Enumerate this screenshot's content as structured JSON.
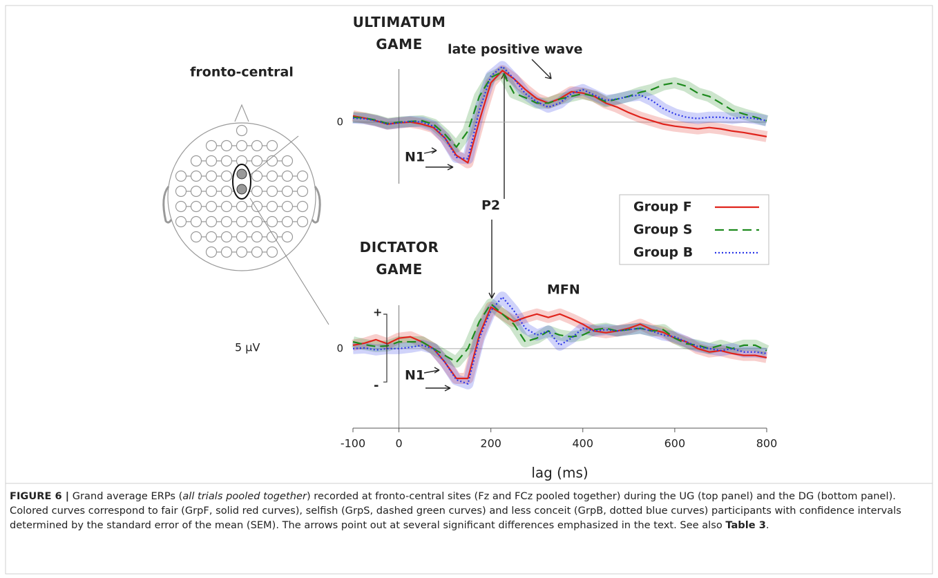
{
  "chart_data": [
    {
      "type": "line",
      "title": "ULTIMATUM GAME",
      "x": [
        -100,
        -75,
        -50,
        -25,
        0,
        25,
        50,
        75,
        100,
        125,
        150,
        175,
        200,
        225,
        250,
        275,
        300,
        325,
        350,
        375,
        400,
        425,
        450,
        475,
        500,
        525,
        550,
        575,
        600,
        625,
        650,
        675,
        700,
        725,
        750,
        775,
        800
      ],
      "xlim": [
        -100,
        800
      ],
      "ylim": [
        -5,
        6
      ],
      "yticks": [
        0
      ],
      "grid": true,
      "annotations": [
        "N1",
        "late positive wave"
      ],
      "series": [
        {
          "name": "Group F",
          "color": "#e0231b",
          "style": "solid",
          "values": [
            0.46,
            0.3,
            0.1,
            -0.15,
            -0.05,
            0,
            -0.15,
            -0.4,
            -1.17,
            -2.45,
            -3.0,
            0.1,
            2.9,
            3.8,
            3.2,
            2.4,
            1.73,
            1.4,
            1.73,
            2.24,
            2.14,
            1.9,
            1.4,
            1.1,
            0.7,
            0.36,
            0.1,
            -0.15,
            -0.3,
            -0.4,
            -0.5,
            -0.4,
            -0.5,
            -0.66,
            -0.77,
            -0.92,
            -1.07
          ]
        },
        {
          "name": "Group S",
          "color": "#1d8a1d",
          "style": "dashed",
          "values": [
            0.36,
            0.3,
            0.15,
            -0.1,
            0,
            0.05,
            0.1,
            -0.15,
            -0.9,
            -1.84,
            -0.66,
            1.9,
            3.3,
            3.7,
            2.14,
            1.8,
            1.4,
            1.4,
            1.7,
            1.9,
            2.1,
            1.9,
            1.5,
            1.7,
            1.9,
            2.2,
            2.4,
            2.75,
            2.9,
            2.65,
            2.14,
            1.9,
            1.4,
            0.87,
            0.6,
            0.36,
            0.1
          ]
        },
        {
          "name": "Group B",
          "color": "#2a35e8",
          "style": "dotted",
          "values": [
            0.3,
            0.25,
            0.1,
            -0.15,
            -0.05,
            0.05,
            0,
            -0.3,
            -1.17,
            -2.6,
            -2.7,
            0.87,
            3.4,
            4.1,
            3.2,
            2.1,
            1.5,
            1.1,
            1.4,
            2.1,
            2.4,
            2.0,
            1.6,
            1.7,
            1.9,
            2.0,
            1.6,
            1.0,
            0.6,
            0.36,
            0.26,
            0.36,
            0.36,
            0.26,
            0.36,
            0.26,
            0.1
          ]
        }
      ]
    },
    {
      "type": "line",
      "title": "DICTATOR GAME",
      "x": [
        -100,
        -75,
        -50,
        -25,
        0,
        25,
        50,
        75,
        100,
        125,
        150,
        175,
        200,
        225,
        250,
        275,
        300,
        325,
        350,
        375,
        400,
        425,
        450,
        475,
        500,
        525,
        550,
        575,
        600,
        625,
        650,
        675,
        700,
        725,
        750,
        775,
        800
      ],
      "xlim": [
        -100,
        800
      ],
      "ylim": [
        -5,
        6
      ],
      "yticks": [
        0
      ],
      "grid": true,
      "xticks": [
        -100,
        0,
        200,
        400,
        600,
        800
      ],
      "xlabel": "lag (ms)",
      "annotations": [
        "N1",
        "P2",
        "MFN"
      ],
      "series": [
        {
          "name": "Group F",
          "color": "#e0231b",
          "style": "solid",
          "values": [
            0.25,
            0.4,
            0.66,
            0.36,
            0.77,
            0.87,
            0.5,
            0,
            -1.0,
            -2.2,
            -2.2,
            1.0,
            3.06,
            2.55,
            2.0,
            2.3,
            2.55,
            2.3,
            2.55,
            2.2,
            1.8,
            1.3,
            1.17,
            1.3,
            1.5,
            1.8,
            1.4,
            1.2,
            0.77,
            0.5,
            0,
            -0.25,
            -0.15,
            -0.36,
            -0.5,
            -0.5,
            -0.66
          ]
        },
        {
          "name": "Group S",
          "color": "#1d8a1d",
          "style": "dashed",
          "values": [
            0.5,
            0.3,
            0.15,
            0.2,
            0.5,
            0.5,
            0.5,
            0,
            -0.5,
            -1.0,
            0,
            2.0,
            3.3,
            2.55,
            1.8,
            0.5,
            0.77,
            1.3,
            1.0,
            0.87,
            1.0,
            1.4,
            1.5,
            1.3,
            1.4,
            1.5,
            1.3,
            1.4,
            0.77,
            0.36,
            0.25,
            0,
            0.25,
            0,
            0.25,
            0.25,
            -0.15
          ]
        },
        {
          "name": "Group B",
          "color": "#2a35e8",
          "style": "dotted",
          "values": [
            0,
            0.05,
            -0.1,
            0,
            0,
            0.1,
            0.25,
            0,
            -1.0,
            -2.3,
            -2.6,
            0.77,
            2.8,
            3.8,
            2.8,
            1.5,
            1.0,
            1.3,
            0.25,
            0.77,
            1.5,
            1.3,
            1.4,
            1.3,
            1.4,
            1.5,
            1.3,
            1.0,
            0.87,
            0.5,
            0.15,
            0,
            -0.15,
            0,
            -0.25,
            -0.25,
            -0.36
          ]
        }
      ]
    }
  ],
  "head": {
    "label": "fronto-central"
  },
  "scale_bar": {
    "label": "5 µV",
    "value": 5,
    "plus": "+",
    "minus": "-"
  },
  "caption": [
    {
      "text": "FIGURE 6 |",
      "style": "bold"
    },
    {
      "text": " Grand average ERPs (",
      "style": "normal"
    },
    {
      "text": "all trials pooled together",
      "style": "italic"
    },
    {
      "text": ") recorded at fronto-central sites (Fz and FCz pooled together) during the UG (top panel) and the DG (bottom panel). Colored curves correspond to fair (GrpF, solid red curves), selfish (GrpS, dashed green curves) and less conceit (GrpB, dotted blue curves) participants with confidence intervals determined by the standard error of the mean (SEM). The arrows point out at several significant differences emphasized in the text. See also ",
      "style": "normal"
    },
    {
      "text": "Table 3",
      "style": "bold"
    },
    {
      "text": ".",
      "style": "normal"
    }
  ]
}
